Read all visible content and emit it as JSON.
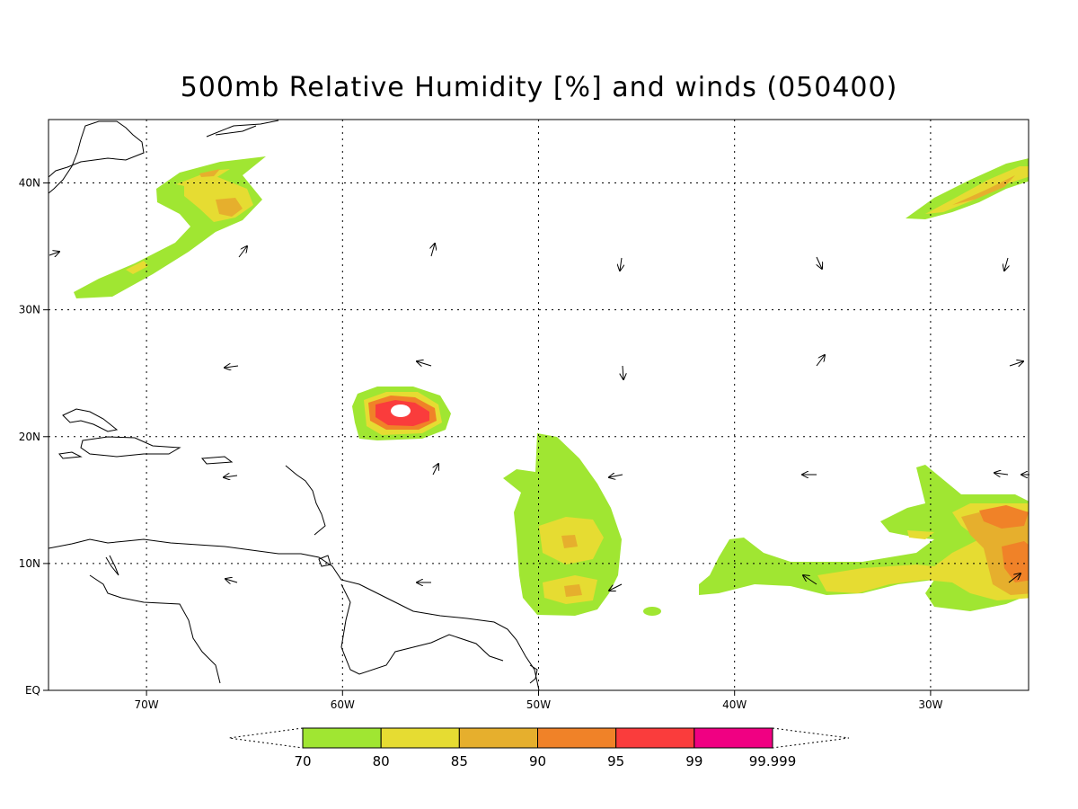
{
  "title": "500mb Relative Humidity [%] and winds (050400)",
  "map": {
    "lon_range": [
      -75,
      -25
    ],
    "lat_range": [
      0,
      45
    ],
    "lon_ticks": [
      {
        "value": -70,
        "label": "70W"
      },
      {
        "value": -60,
        "label": "60W"
      },
      {
        "value": -50,
        "label": "50W"
      },
      {
        "value": -40,
        "label": "40W"
      },
      {
        "value": -30,
        "label": "30W"
      }
    ],
    "lat_ticks": [
      {
        "value": 0,
        "label": "EQ"
      },
      {
        "value": 10,
        "label": "10N"
      },
      {
        "value": 20,
        "label": "20N"
      },
      {
        "value": 30,
        "label": "30N"
      },
      {
        "value": 40,
        "label": "40N"
      }
    ],
    "grid": "dotted"
  },
  "colorbar": {
    "levels": [
      "70",
      "80",
      "85",
      "90",
      "95",
      "99",
      "99.999"
    ],
    "colors": [
      "#a0e632",
      "#e6dc32",
      "#e6af2d",
      "#f08228",
      "#fa3c3c",
      "#f00082"
    ]
  },
  "palette": {
    "rh70": "#a0e632",
    "rh80": "#e6dc32",
    "rh85": "#e6af2d",
    "rh90": "#f08228",
    "rh95": "#fa3c3c",
    "rh99": "#f00082"
  }
}
